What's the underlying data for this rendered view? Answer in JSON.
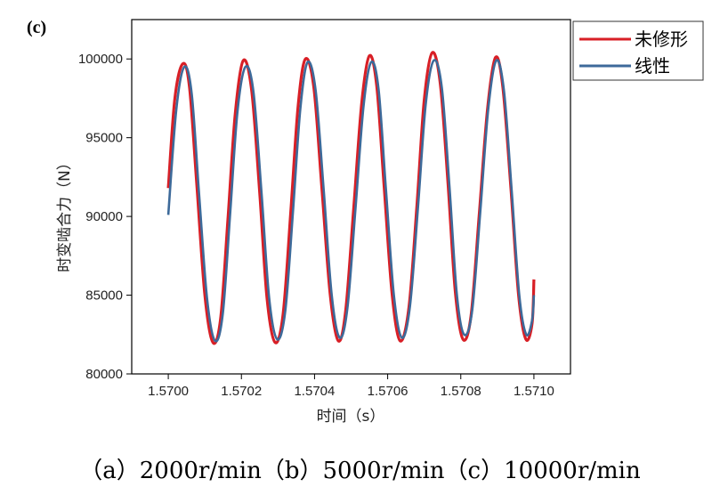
{
  "panel_label": "(c)",
  "caption": "（a）2000r/min（b）5000r/min（c）10000r/min",
  "colors": {
    "series_unmodified": "#d81f26",
    "series_linear": "#3d6a9a",
    "axis": "#000000"
  },
  "chart_data": {
    "type": "line",
    "title": "",
    "xlabel": "时间（s）",
    "ylabel": "时变啮合力（N）",
    "xlim": [
      1.5699,
      1.5711
    ],
    "ylim": [
      80000,
      102500
    ],
    "xticks": [
      "1.5700",
      "1.5702",
      "1.5704",
      "1.5706",
      "1.5708",
      "1.5710"
    ],
    "xtick_values": [
      1.57,
      1.5702,
      1.5704,
      1.5706,
      1.5708,
      1.571
    ],
    "yticks": [
      "80000",
      "85000",
      "90000",
      "95000",
      "100000"
    ],
    "ytick_values": [
      80000,
      85000,
      90000,
      95000,
      100000
    ],
    "legend_position": "top-right",
    "series": [
      {
        "name": "未修形",
        "color": "#d81f26",
        "x": [
          1.57,
          1.570018,
          1.57004,
          1.570058,
          1.570078,
          1.5701,
          1.570122,
          1.570143,
          1.570163,
          1.570183,
          1.570205,
          1.570228,
          1.57025,
          1.57027,
          1.570292,
          1.570314,
          1.570335,
          1.570355,
          1.570375,
          1.570398,
          1.57042,
          1.570443,
          1.570465,
          1.570485,
          1.570507,
          1.570529,
          1.57055,
          1.57057,
          1.57059,
          1.570612,
          1.570634,
          1.570658,
          1.57068,
          1.5707,
          1.570722,
          1.570744,
          1.570765,
          1.570785,
          1.570806,
          1.570828,
          1.57085,
          1.570873,
          1.570895,
          1.570915,
          1.570937,
          1.570958,
          1.570978,
          1.570995,
          1.571
        ],
        "y": [
          91800,
          97500,
          99700,
          98200,
          92000,
          85000,
          82000,
          83500,
          89800,
          96500,
          99900,
          98000,
          91500,
          84800,
          82000,
          83800,
          90300,
          97000,
          100000,
          98200,
          91800,
          85000,
          82100,
          84000,
          90500,
          97200,
          100200,
          98300,
          92000,
          85100,
          82100,
          84200,
          90700,
          97400,
          100400,
          98400,
          92100,
          85200,
          82200,
          83700,
          90000,
          96800,
          100100,
          98200,
          91800,
          85000,
          82200,
          83200,
          86000
        ]
      },
      {
        "name": "线性",
        "color": "#3d6a9a",
        "x": [
          1.57,
          1.570022,
          1.570044,
          1.570064,
          1.570084,
          1.570106,
          1.570128,
          1.570149,
          1.570169,
          1.570189,
          1.570211,
          1.570233,
          1.570255,
          1.570276,
          1.570298,
          1.57032,
          1.570341,
          1.570361,
          1.570381,
          1.570403,
          1.570425,
          1.570447,
          1.570469,
          1.57049,
          1.570512,
          1.570534,
          1.570555,
          1.570575,
          1.570595,
          1.570617,
          1.570639,
          1.570661,
          1.570683,
          1.570704,
          1.570726,
          1.570748,
          1.570769,
          1.570789,
          1.570809,
          1.570831,
          1.570853,
          1.570875,
          1.570897,
          1.570918,
          1.570939,
          1.57096,
          1.570979,
          1.570995,
          1.571
        ],
        "y": [
          90100,
          96800,
          99500,
          97800,
          91500,
          84800,
          82100,
          83800,
          90100,
          96600,
          99500,
          97900,
          91500,
          84800,
          82200,
          84000,
          90300,
          96800,
          99800,
          98000,
          91700,
          85000,
          82300,
          84200,
          90500,
          97000,
          99800,
          98100,
          91800,
          85000,
          82300,
          84300,
          90600,
          97100,
          99900,
          98200,
          91900,
          85100,
          82500,
          84000,
          90200,
          96800,
          99900,
          98000,
          91700,
          85000,
          82500,
          83400,
          85000
        ]
      }
    ]
  }
}
